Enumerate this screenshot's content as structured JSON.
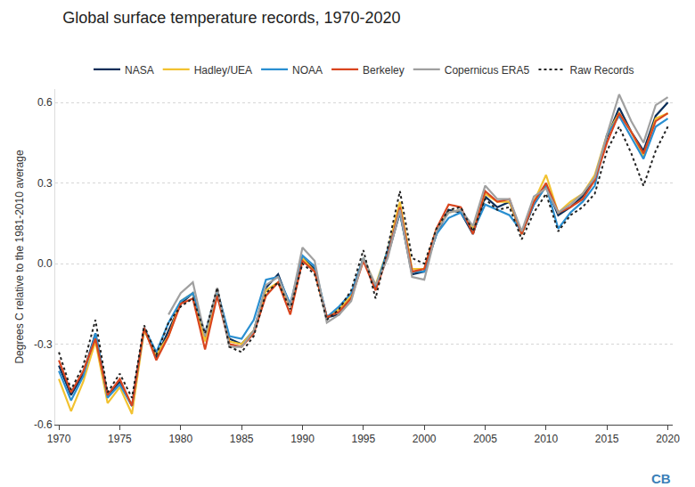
{
  "chart_data": {
    "type": "line",
    "title": "Global surface temperature records, 1970-2020",
    "y_label": "Degrees C relative to the 1981-2010 average",
    "annotations": [
      "CB"
    ],
    "x": [
      1970,
      1971,
      1972,
      1973,
      1974,
      1975,
      1976,
      1977,
      1978,
      1979,
      1980,
      1981,
      1982,
      1983,
      1984,
      1985,
      1986,
      1987,
      1988,
      1989,
      1990,
      1991,
      1992,
      1993,
      1994,
      1995,
      1996,
      1997,
      1998,
      1999,
      2000,
      2001,
      2002,
      2003,
      2004,
      2005,
      2006,
      2007,
      2008,
      2009,
      2010,
      2011,
      2012,
      2013,
      2014,
      2015,
      2016,
      2017,
      2018,
      2019,
      2020
    ],
    "xlim": [
      1969.7,
      2020.4
    ],
    "xticks": [
      1970,
      1975,
      1980,
      1985,
      1990,
      1995,
      2000,
      2005,
      2010,
      2015,
      2020
    ],
    "ylim": [
      -0.6,
      0.65
    ],
    "yticks": [
      -0.6,
      -0.3,
      {
        "value": 0,
        "label": "0.0"
      },
      0.3,
      0.6
    ],
    "grid": true,
    "legend": "top",
    "series": [
      {
        "name": "NASA",
        "color": "#0b2e59",
        "line_style": "solid",
        "values": [
          -0.38,
          -0.49,
          -0.41,
          -0.26,
          -0.49,
          -0.44,
          -0.53,
          -0.24,
          -0.35,
          -0.25,
          -0.15,
          -0.11,
          -0.28,
          -0.1,
          -0.28,
          -0.3,
          -0.25,
          -0.09,
          -0.04,
          -0.16,
          0.02,
          -0.02,
          -0.2,
          -0.19,
          -0.12,
          0.02,
          -0.09,
          0.03,
          0.19,
          -0.04,
          -0.03,
          0.11,
          0.2,
          0.19,
          0.11,
          0.25,
          0.21,
          0.23,
          0.11,
          0.22,
          0.29,
          0.18,
          0.21,
          0.25,
          0.32,
          0.47,
          0.58,
          0.49,
          0.42,
          0.55,
          0.6
        ]
      },
      {
        "name": "Hadley/UEA",
        "color": "#f2c230",
        "line_style": "solid",
        "values": [
          -0.43,
          -0.55,
          -0.44,
          -0.29,
          -0.52,
          -0.46,
          -0.56,
          -0.25,
          -0.34,
          -0.27,
          -0.14,
          -0.11,
          -0.29,
          -0.11,
          -0.29,
          -0.3,
          -0.25,
          -0.1,
          -0.07,
          -0.16,
          0.02,
          -0.03,
          -0.2,
          -0.17,
          -0.12,
          0.02,
          -0.08,
          0.05,
          0.23,
          -0.02,
          -0.02,
          0.13,
          0.19,
          0.2,
          0.13,
          0.26,
          0.23,
          0.23,
          0.11,
          0.23,
          0.33,
          0.19,
          0.23,
          0.26,
          0.33,
          0.48,
          0.56,
          0.49,
          0.4,
          0.54,
          0.56
        ]
      },
      {
        "name": "NOAA",
        "color": "#2a8fd1",
        "line_style": "solid",
        "values": [
          -0.4,
          -0.51,
          -0.42,
          -0.26,
          -0.5,
          -0.45,
          -0.53,
          -0.24,
          -0.33,
          -0.22,
          -0.14,
          -0.11,
          -0.26,
          -0.1,
          -0.27,
          -0.28,
          -0.21,
          -0.06,
          -0.05,
          -0.15,
          0.03,
          -0.01,
          -0.2,
          -0.16,
          -0.11,
          0.02,
          -0.09,
          0.05,
          0.19,
          -0.03,
          -0.03,
          0.11,
          0.17,
          0.19,
          0.12,
          0.22,
          0.2,
          0.18,
          0.12,
          0.22,
          0.29,
          0.13,
          0.19,
          0.23,
          0.29,
          0.48,
          0.55,
          0.47,
          0.39,
          0.51,
          0.54
        ]
      },
      {
        "name": "Berkeley",
        "color": "#d9451e",
        "line_style": "solid",
        "values": [
          -0.36,
          -0.48,
          -0.4,
          -0.28,
          -0.49,
          -0.43,
          -0.53,
          -0.24,
          -0.36,
          -0.27,
          -0.15,
          -0.13,
          -0.32,
          -0.12,
          -0.3,
          -0.31,
          -0.26,
          -0.12,
          -0.07,
          -0.19,
          0.01,
          -0.03,
          -0.2,
          -0.18,
          -0.13,
          0.01,
          -0.1,
          0.03,
          0.21,
          -0.03,
          -0.02,
          0.13,
          0.22,
          0.21,
          0.11,
          0.27,
          0.23,
          0.24,
          0.11,
          0.23,
          0.3,
          0.19,
          0.21,
          0.24,
          0.31,
          0.45,
          0.56,
          0.49,
          0.41,
          0.53,
          0.56
        ]
      },
      {
        "name": "Copernicus ERA5",
        "color": "#a0a0a0",
        "line_style": "solid",
        "values": [
          null,
          null,
          null,
          null,
          null,
          null,
          null,
          null,
          null,
          -0.19,
          -0.11,
          -0.07,
          -0.27,
          -0.09,
          -0.31,
          -0.31,
          -0.25,
          -0.08,
          -0.05,
          -0.16,
          0.06,
          0.01,
          -0.22,
          -0.19,
          -0.14,
          0.02,
          -0.08,
          0.02,
          0.2,
          -0.05,
          -0.06,
          0.12,
          0.19,
          0.2,
          0.14,
          0.29,
          0.24,
          0.24,
          0.12,
          0.25,
          0.28,
          0.19,
          0.22,
          0.26,
          0.32,
          0.48,
          0.63,
          0.53,
          0.45,
          0.59,
          0.62
        ]
      },
      {
        "name": "Raw Records",
        "color": "#222222",
        "line_style": "dotted",
        "values": [
          -0.33,
          -0.47,
          -0.38,
          -0.21,
          -0.48,
          -0.41,
          -0.5,
          -0.23,
          -0.34,
          -0.22,
          -0.16,
          -0.13,
          -0.26,
          -0.09,
          -0.31,
          -0.33,
          -0.27,
          -0.11,
          -0.07,
          -0.17,
          0.0,
          -0.04,
          -0.21,
          -0.17,
          -0.1,
          0.05,
          -0.13,
          0.06,
          0.27,
          0.02,
          0.0,
          0.13,
          0.2,
          0.21,
          0.12,
          0.24,
          0.2,
          0.21,
          0.09,
          0.19,
          0.26,
          0.12,
          0.18,
          0.21,
          0.26,
          0.42,
          0.51,
          0.41,
          0.29,
          0.42,
          0.51
        ]
      }
    ]
  }
}
